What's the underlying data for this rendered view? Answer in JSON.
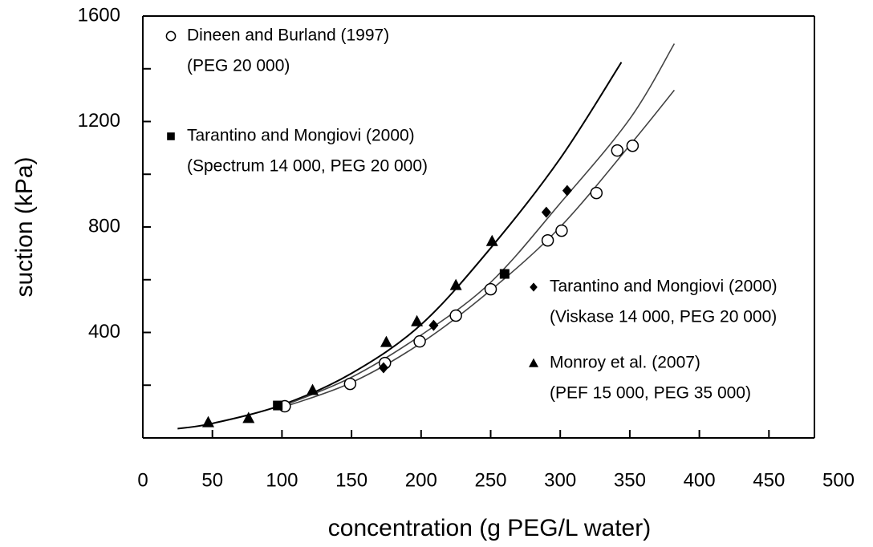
{
  "chart_data": {
    "type": "scatter",
    "x_label": "concentration (g PEG/L water)",
    "y_label": "suction (kPa)",
    "xlim": [
      0,
      500
    ],
    "ylim": [
      0,
      1600
    ],
    "xticks": [
      0,
      50,
      100,
      150,
      200,
      250,
      300,
      350,
      400,
      450,
      500
    ],
    "yticks": [
      400,
      800,
      1200,
      1600
    ],
    "yminor": [
      200,
      600,
      1000,
      1400
    ],
    "series": [
      {
        "name": "Dineen and Burland (1997)",
        "note": "(PEG 20 000)",
        "marker": "circle",
        "color": "#000000",
        "x": [
          102,
          149,
          174,
          199,
          225,
          250,
          291,
          301,
          326,
          341,
          352
        ],
        "values": [
          120,
          205,
          284,
          366,
          464,
          564,
          749,
          786,
          929,
          1090,
          1108
        ]
      },
      {
        "name": "Tarantino and Mongiovi (2000)",
        "note": "(Spectrum 14 000, PEG 20 000)",
        "marker": "square",
        "color": "#000000",
        "x": [
          97,
          260
        ],
        "values": [
          123,
          622
        ]
      },
      {
        "name": "Tarantino and Mongiovi (2000)",
        "note": "(Viskase 14 000, PEG 20 000)",
        "marker": "diamond",
        "color": "#000000",
        "x": [
          173,
          209,
          290,
          305
        ],
        "values": [
          266,
          427,
          856,
          938
        ]
      },
      {
        "name": "Monroy et al. (2007)",
        "note": "(PEF 15 000, PEG 35 000)",
        "marker": "triangle",
        "color": "#000000",
        "x": [
          47,
          76,
          122,
          175,
          197,
          225,
          251
        ],
        "values": [
          59,
          75,
          181,
          363,
          442,
          579,
          746
        ]
      }
    ],
    "fit_lines": [
      {
        "color": "#000000",
        "x": [
          25,
          50,
          100,
          150,
          200,
          250,
          300,
          344
        ],
        "values": [
          35,
          55,
          125,
          245,
          430,
          720,
          1060,
          1425
        ]
      },
      {
        "color": "#444444",
        "x": [
          100,
          150,
          200,
          250,
          300,
          350,
          382
        ],
        "values": [
          120,
          230,
          390,
          590,
          890,
          1210,
          1495
        ]
      },
      {
        "color": "#444444",
        "x": [
          100,
          150,
          200,
          250,
          300,
          350,
          382
        ],
        "values": [
          115,
          210,
          360,
          560,
          800,
          1110,
          1319
        ]
      }
    ]
  }
}
